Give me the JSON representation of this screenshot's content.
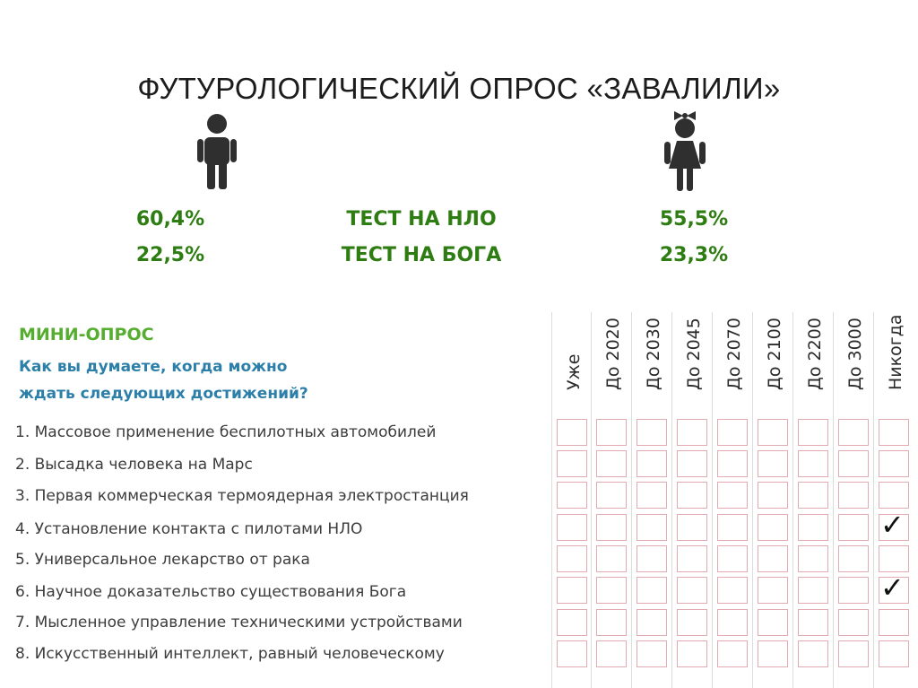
{
  "title": "ФУТУРОЛОГИЧЕСКИЙ ОПРОС «ЗАВАЛИЛИ»",
  "icons": {
    "boy": "boy-icon",
    "girl": "girl-icon",
    "check": "checkmark-icon"
  },
  "colors": {
    "stats": "#2e7d12",
    "mini_title": "#56ad2f",
    "question": "#2c7fa8",
    "cell_border": "#e2aab1"
  },
  "stats": {
    "boys": [
      "60,4%",
      "22,5%"
    ],
    "tests": [
      "ТЕСТ НА НЛО",
      "ТЕСТ НА БОГА"
    ],
    "girls": [
      "55,5%",
      "23,3%"
    ]
  },
  "survey": {
    "heading": "МИНИ-ОПРОС",
    "question_lines": [
      "Как вы думаете, когда можно",
      "ждать следующих достижений?"
    ],
    "columns": [
      "Уже",
      "До 2020",
      "До 2030",
      "До 2045",
      "До 2070",
      "До 2100",
      "До 2200",
      "До 3000",
      "Никогда"
    ],
    "items": [
      "1. Массовое применение беспилотных автомобилей",
      "2. Высадка человека на Марс",
      "3. Первая коммерческая термоядерная электростанция",
      "4. Установление контакта с пилотами НЛО",
      "5. Универсальное лекарство от рака",
      "6. Научное доказательство существования Бога",
      "7. Мысленное управление техническими устройствами",
      "8. Искусственный интеллект, равный человеческому"
    ],
    "checked_rows": [
      3,
      5
    ],
    "check_mark": "✓"
  }
}
